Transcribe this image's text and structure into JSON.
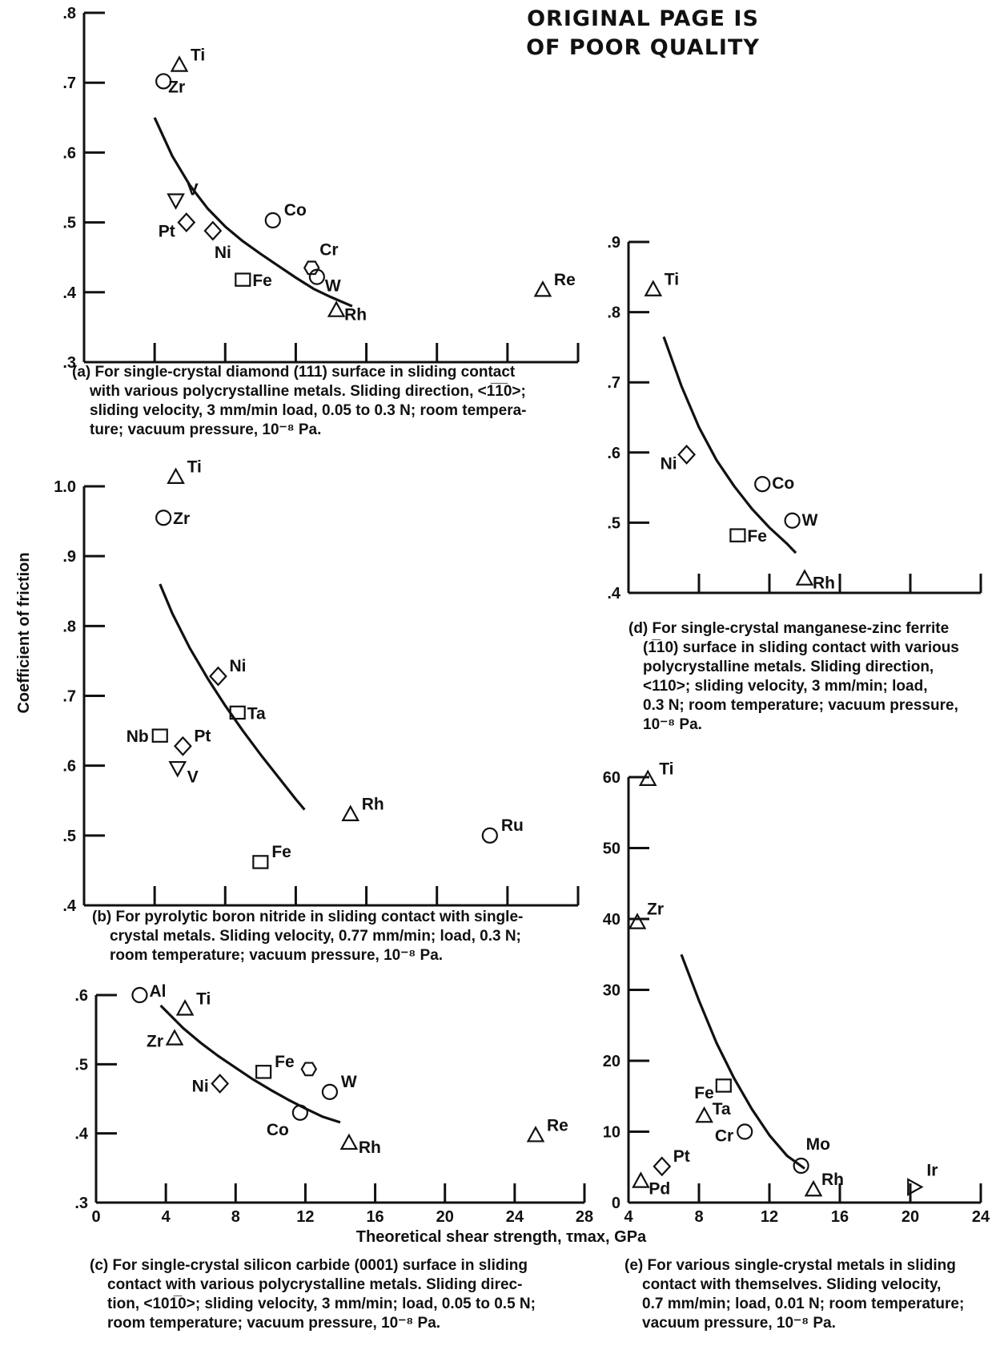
{
  "header": {
    "line1": "ORIGINAL PAGE IS",
    "line2": "OF POOR QUALITY"
  },
  "shared_labels": {
    "ylabel": "Coefficient of friction",
    "xlabel": "Theoretical shear strength, τmax, GPa"
  },
  "chart_data": [
    {
      "id": "a",
      "type": "scatter",
      "ylim": [
        0.3,
        0.8
      ],
      "yticks": [
        ".3",
        ".4",
        ".5",
        ".6",
        ".7",
        ".8"
      ],
      "xlim": [
        0,
        28
      ],
      "xticks": [
        4,
        8,
        12,
        16,
        20,
        24,
        28
      ],
      "caption": [
        "(a) For single-crystal diamond (111) surface in sliding contact",
        "with various polycrystalline metals.  Sliding direction, <1̅1̅0>;",
        "sliding velocity, 3 mm/min load, 0.05 to 0.3 N;  room tempera-",
        "ture;  vacuum pressure, 10⁻⁸ Pa."
      ],
      "points": [
        {
          "label": "Ti",
          "marker": "triangle-up",
          "x": 5.4,
          "y": 0.725
        },
        {
          "label": "Zr",
          "marker": "circle",
          "x": 4.5,
          "y": 0.702
        },
        {
          "label": "V",
          "marker": "triangle-down",
          "x": 5.2,
          "y": 0.532
        },
        {
          "label": "Pt",
          "marker": "diamond",
          "x": 5.8,
          "y": 0.5
        },
        {
          "label": "Ni",
          "marker": "diamond",
          "x": 7.3,
          "y": 0.488
        },
        {
          "label": "Co",
          "marker": "circle",
          "x": 10.7,
          "y": 0.503
        },
        {
          "label": "Cr",
          "marker": "hexagon",
          "x": 12.9,
          "y": 0.435
        },
        {
          "label": "W",
          "marker": "circle",
          "x": 13.2,
          "y": 0.422
        },
        {
          "label": "Fe",
          "marker": "square",
          "x": 9.0,
          "y": 0.418
        },
        {
          "label": "Rh",
          "marker": "triangle-up",
          "x": 14.3,
          "y": 0.374
        },
        {
          "label": "Re",
          "marker": "triangle-up",
          "x": 26.0,
          "y": 0.403
        }
      ],
      "curve": {
        "x": [
          4.0,
          5,
          6,
          7,
          8,
          9,
          10,
          11,
          12,
          13,
          14,
          15.2
        ],
        "y": [
          0.65,
          0.595,
          0.553,
          0.52,
          0.494,
          0.473,
          0.455,
          0.438,
          0.421,
          0.405,
          0.393,
          0.38
        ]
      }
    },
    {
      "id": "b",
      "type": "scatter",
      "ylim": [
        0.4,
        1.0
      ],
      "yticks": [
        ".4",
        ".5",
        ".6",
        ".7",
        ".8",
        ".9",
        "1.0"
      ],
      "xlim": [
        0,
        28
      ],
      "xticks": [
        4,
        8,
        12,
        16,
        20,
        24,
        28
      ],
      "caption": [
        "(b) For pyrolytic boron nitride in sliding contact with single-",
        "crystal metals.  Sliding velocity, 0.77 mm/min;  load, 0.3 N;",
        "room temperature;  vacuum pressure, 10⁻⁸ Pa."
      ],
      "points": [
        {
          "label": "Ti",
          "marker": "triangle-up",
          "x": 5.2,
          "y": 1.013
        },
        {
          "label": "Zr",
          "marker": "circle",
          "x": 4.5,
          "y": 0.955
        },
        {
          "label": "Ni",
          "marker": "diamond",
          "x": 7.6,
          "y": 0.728
        },
        {
          "label": "Ta",
          "marker": "square",
          "x": 8.7,
          "y": 0.676
        },
        {
          "label": "Nb",
          "marker": "square",
          "x": 4.3,
          "y": 0.643
        },
        {
          "label": "Pt",
          "marker": "diamond",
          "x": 5.6,
          "y": 0.628
        },
        {
          "label": "V",
          "marker": "triangle-down",
          "x": 5.3,
          "y": 0.597
        },
        {
          "label": "Rh",
          "marker": "triangle-up",
          "x": 15.1,
          "y": 0.53
        },
        {
          "label": "Fe",
          "marker": "square",
          "x": 10.0,
          "y": 0.462
        },
        {
          "label": "Ru",
          "marker": "circle",
          "x": 23.0,
          "y": 0.5
        }
      ],
      "curve": {
        "x": [
          4.3,
          5,
          6,
          7,
          8,
          9,
          10,
          11,
          12,
          12.5
        ],
        "y": [
          0.86,
          0.818,
          0.768,
          0.725,
          0.686,
          0.65,
          0.616,
          0.584,
          0.552,
          0.537
        ]
      }
    },
    {
      "id": "c",
      "type": "scatter",
      "ylim": [
        0.3,
        0.6
      ],
      "yticks": [
        ".3",
        ".4",
        ".5",
        ".6"
      ],
      "xlim": [
        0,
        28
      ],
      "xticks": [
        0,
        4,
        8,
        12,
        16,
        20,
        24,
        28
      ],
      "caption": [
        "(c) For single-crystal silicon carbide (0001) surface in sliding",
        "contact with various polycrystalline metals.  Sliding direc-",
        "tion, <101̅0>;  sliding velocity, 3 mm/min;  load, 0.05 to 0.5 N;",
        "room temperature;  vacuum pressure, 10⁻⁸ Pa."
      ],
      "points": [
        {
          "label": "Al",
          "marker": "circle",
          "x": 2.5,
          "y": 0.6
        },
        {
          "label": "Ti",
          "marker": "triangle-up",
          "x": 5.1,
          "y": 0.58
        },
        {
          "label": "Zr",
          "marker": "triangle-up",
          "x": 4.5,
          "y": 0.537
        },
        {
          "label": "Ni",
          "marker": "diamond",
          "x": 7.1,
          "y": 0.472
        },
        {
          "label": "Fe",
          "marker": "square",
          "x": 9.6,
          "y": 0.489
        },
        {
          "label": "",
          "marker": "hexagon",
          "x": 12.2,
          "y": 0.493
        },
        {
          "label": "W",
          "marker": "circle",
          "x": 13.4,
          "y": 0.46
        },
        {
          "label": "Co",
          "marker": "circle",
          "x": 11.7,
          "y": 0.43
        },
        {
          "label": "Rh",
          "marker": "triangle-up",
          "x": 14.5,
          "y": 0.386
        },
        {
          "label": "Re",
          "marker": "triangle-up",
          "x": 25.2,
          "y": 0.397
        }
      ],
      "curve": {
        "x": [
          3.7,
          5,
          6,
          7,
          8,
          9,
          10,
          11,
          12,
          13,
          14
        ],
        "y": [
          0.585,
          0.552,
          0.531,
          0.512,
          0.495,
          0.478,
          0.463,
          0.449,
          0.436,
          0.424,
          0.416
        ]
      }
    },
    {
      "id": "d",
      "type": "scatter",
      "ylim": [
        0.4,
        0.9
      ],
      "yticks": [
        ".4",
        ".5",
        ".6",
        ".7",
        ".8",
        ".9"
      ],
      "xlim": [
        4,
        24
      ],
      "xticks": [
        8,
        12,
        16,
        20,
        24
      ],
      "caption": [
        "(d) For single-crystal manganese-zinc ferrite",
        "(1̅10) surface in sliding contact with various",
        "polycrystalline metals.  Sliding direction,",
        "<110>;  sliding velocity, 3 mm/min;  load,",
        "0.3 N;  room temperature;  vacuum pressure,",
        "10⁻⁸ Pa."
      ],
      "points": [
        {
          "label": "Ti",
          "marker": "triangle-up",
          "x": 5.4,
          "y": 0.832
        },
        {
          "label": "Ni",
          "marker": "diamond",
          "x": 7.3,
          "y": 0.597
        },
        {
          "label": "Co",
          "marker": "circle",
          "x": 11.6,
          "y": 0.555
        },
        {
          "label": "W",
          "marker": "circle",
          "x": 13.3,
          "y": 0.503
        },
        {
          "label": "Fe",
          "marker": "square",
          "x": 10.2,
          "y": 0.482
        },
        {
          "label": "Rh",
          "marker": "triangle-up",
          "x": 14.0,
          "y": 0.42
        }
      ],
      "curve": {
        "x": [
          6.0,
          7,
          8,
          9,
          10,
          11,
          12,
          13,
          13.5
        ],
        "y": [
          0.765,
          0.695,
          0.636,
          0.589,
          0.552,
          0.52,
          0.493,
          0.47,
          0.457
        ]
      }
    },
    {
      "id": "e",
      "type": "scatter",
      "ylim": [
        0,
        60
      ],
      "yticks": [
        "0",
        "10",
        "20",
        "30",
        "40",
        "50",
        "60"
      ],
      "xlim": [
        4,
        24
      ],
      "xticks": [
        4,
        8,
        12,
        16,
        20,
        24
      ],
      "caption": [
        "(e) For various single-crystal metals in sliding",
        "contact with themselves.  Sliding velocity,",
        "0.7 mm/min;  load, 0.01 N;  room temperature;",
        "vacuum pressure, 10⁻⁸ Pa."
      ],
      "points": [
        {
          "label": "Ti",
          "marker": "triangle-up",
          "x": 5.1,
          "y": 59.7
        },
        {
          "label": "Zr",
          "marker": "triangle-up",
          "x": 4.5,
          "y": 39.5
        },
        {
          "label": "Fe",
          "marker": "square",
          "x": 9.4,
          "y": 16.5
        },
        {
          "label": "Ta",
          "marker": "triangle-up",
          "x": 8.3,
          "y": 12.2
        },
        {
          "label": "Cr",
          "marker": "circle",
          "x": 10.6,
          "y": 10.0
        },
        {
          "label": "Pt",
          "marker": "diamond",
          "x": 5.9,
          "y": 5.1
        },
        {
          "label": "Pd",
          "marker": "triangle-up",
          "x": 4.7,
          "y": 3.0
        },
        {
          "label": "Mo",
          "marker": "circle",
          "x": 13.8,
          "y": 5.2
        },
        {
          "label": "Rh",
          "marker": "triangle-up",
          "x": 14.5,
          "y": 1.8
        },
        {
          "label": "Ir",
          "marker": "triangle-right",
          "x": 20.2,
          "y": 2.2
        }
      ],
      "curve": {
        "x": [
          7.0,
          8,
          9,
          10,
          11,
          12,
          13,
          14
        ],
        "y": [
          35.0,
          28.5,
          22.5,
          17.5,
          13.2,
          9.5,
          6.6,
          4.8
        ]
      }
    }
  ]
}
